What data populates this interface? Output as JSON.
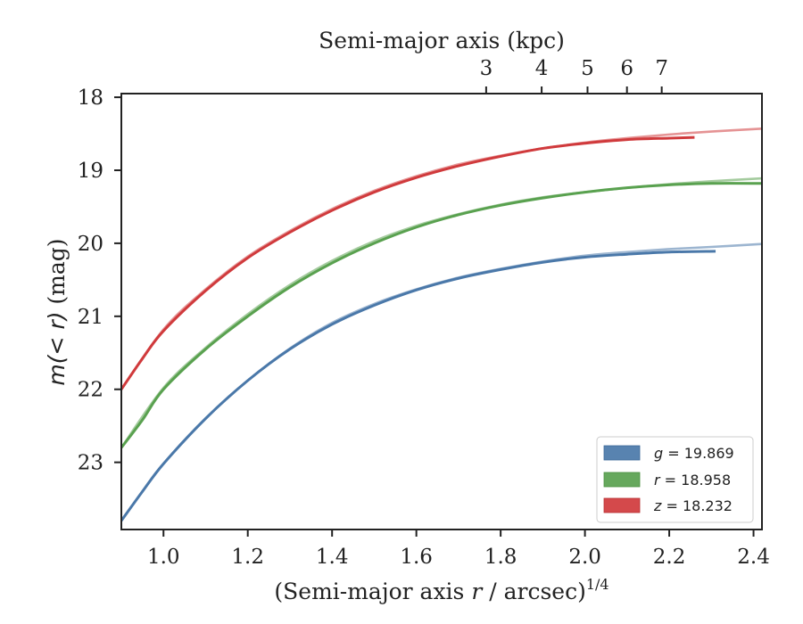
{
  "chart_data": {
    "type": "line",
    "title": "",
    "xlabel": "(Semi-major axis r / arcsec)^1/4",
    "xlabel_parts": {
      "prefix": "(Semi-major axis ",
      "var": "r",
      "middle": " / arcsec)",
      "sup": "1/4"
    },
    "ylabel": "m(<r) (mag)",
    "ylabel_parts": {
      "expr": "m(< r)",
      "unit": " (mag)"
    },
    "top_xlabel": "Semi-major axis (kpc)",
    "xlim": [
      0.9,
      2.42
    ],
    "ylim": [
      23.92,
      17.95
    ],
    "y_inverted": true,
    "x_ticks": [
      "1.0",
      "1.2",
      "1.4",
      "1.6",
      "1.8",
      "2.0",
      "2.2",
      "2.4"
    ],
    "x_tick_values": [
      1.0,
      1.2,
      1.4,
      1.6,
      1.8,
      2.0,
      2.2,
      2.4
    ],
    "y_ticks": [
      "18",
      "19",
      "20",
      "21",
      "22",
      "23"
    ],
    "y_tick_values": [
      18,
      19,
      20,
      21,
      22,
      23
    ],
    "top_ticks": [
      "3",
      "4",
      "5",
      "6",
      "7"
    ],
    "top_tick_values": [
      3,
      4,
      5,
      6,
      7
    ],
    "kpc_per_arcsec": 0.3087,
    "grid": false,
    "legend_position": "lower-right",
    "series": [
      {
        "name": "g = 19.869",
        "label_var": "g",
        "label_value": "19.869",
        "color": "#4a78a9",
        "x": [
          0.9,
          0.95,
          1.0,
          1.1,
          1.2,
          1.3,
          1.4,
          1.5,
          1.6,
          1.7,
          1.8,
          1.9,
          2.0,
          2.1,
          2.2,
          2.31
        ],
        "y": [
          23.8,
          23.4,
          23.02,
          22.4,
          21.88,
          21.45,
          21.11,
          20.85,
          20.64,
          20.48,
          20.36,
          20.26,
          20.19,
          20.15,
          20.12,
          20.11
        ],
        "model_x": [
          0.9,
          1.0,
          1.1,
          1.2,
          1.3,
          1.4,
          1.5,
          1.6,
          1.7,
          1.8,
          1.9,
          2.0,
          2.1,
          2.2,
          2.3,
          2.42
        ],
        "model_y": [
          23.8,
          23.02,
          22.4,
          21.88,
          21.44,
          21.09,
          20.83,
          20.63,
          20.47,
          20.35,
          20.25,
          20.17,
          20.12,
          20.08,
          20.05,
          20.01
        ]
      },
      {
        "name": "r = 18.958",
        "label_var": "r",
        "label_value": "18.958",
        "color": "#59a14f",
        "x": [
          0.9,
          0.95,
          1.0,
          1.1,
          1.2,
          1.3,
          1.4,
          1.5,
          1.6,
          1.7,
          1.8,
          1.9,
          2.0,
          2.1,
          2.2,
          2.3,
          2.42
        ],
        "y": [
          22.8,
          22.42,
          22.0,
          21.45,
          21.0,
          20.6,
          20.27,
          20.0,
          19.78,
          19.61,
          19.48,
          19.38,
          19.3,
          19.24,
          19.2,
          19.18,
          19.18
        ],
        "model_x": [
          0.9,
          1.0,
          1.1,
          1.2,
          1.3,
          1.4,
          1.5,
          1.6,
          1.7,
          1.8,
          1.9,
          2.0,
          2.1,
          2.2,
          2.3,
          2.42
        ],
        "model_y": [
          22.8,
          21.98,
          21.43,
          20.97,
          20.57,
          20.24,
          19.97,
          19.76,
          19.6,
          19.47,
          19.37,
          19.3,
          19.24,
          19.19,
          19.15,
          19.11
        ]
      },
      {
        "name": "z = 18.232",
        "label_var": "z",
        "label_value": "18.232",
        "color": "#d03a3c",
        "x": [
          0.9,
          0.95,
          1.0,
          1.1,
          1.2,
          1.3,
          1.4,
          1.5,
          1.6,
          1.7,
          1.8,
          1.9,
          2.0,
          2.1,
          2.2,
          2.26
        ],
        "y": [
          22.0,
          21.58,
          21.2,
          20.65,
          20.2,
          19.85,
          19.55,
          19.3,
          19.1,
          18.94,
          18.81,
          18.7,
          18.63,
          18.58,
          18.56,
          18.55
        ],
        "model_x": [
          0.9,
          1.0,
          1.1,
          1.2,
          1.3,
          1.4,
          1.5,
          1.6,
          1.7,
          1.8,
          1.9,
          2.0,
          2.1,
          2.2,
          2.3,
          2.42
        ],
        "model_y": [
          22.0,
          21.18,
          20.63,
          20.18,
          19.83,
          19.53,
          19.28,
          19.08,
          18.92,
          18.8,
          18.7,
          18.62,
          18.56,
          18.51,
          18.47,
          18.43
        ]
      }
    ]
  }
}
